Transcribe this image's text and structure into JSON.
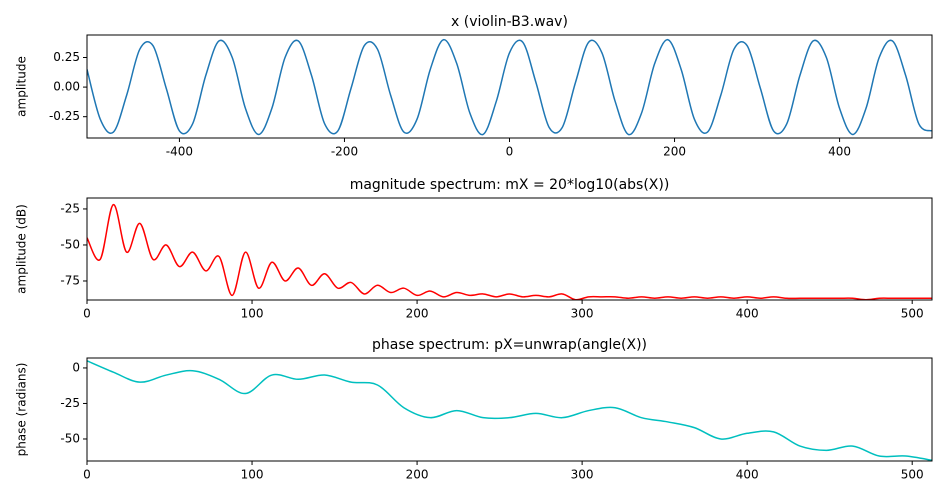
{
  "chart_data": [
    {
      "type": "line",
      "title": "x (violin-B3.wav)",
      "y_label": "amplitude",
      "x": [
        -512,
        -496,
        -480,
        -464,
        -448,
        -432,
        -416,
        -400,
        -384,
        -368,
        -352,
        -336,
        -320,
        -304,
        -288,
        -272,
        -256,
        -240,
        -224,
        -208,
        -192,
        -176,
        -160,
        -144,
        -128,
        -112,
        -96,
        -80,
        -64,
        -48,
        -32,
        -16,
        0,
        16,
        32,
        48,
        64,
        80,
        96,
        112,
        128,
        144,
        160,
        176,
        192,
        208,
        224,
        240,
        256,
        272,
        288,
        304,
        320,
        336,
        352,
        368,
        384,
        400,
        416,
        432,
        448,
        464,
        480,
        496,
        512
      ],
      "series": [
        {
          "color": "#1f77b4",
          "values": [
            0.15,
            -0.27,
            -0.38,
            -0.07,
            0.32,
            0.35,
            -0.01,
            -0.37,
            -0.31,
            0.1,
            0.39,
            0.25,
            -0.18,
            -0.4,
            -0.18,
            0.25,
            0.39,
            0.1,
            -0.31,
            -0.37,
            -0.01,
            0.35,
            0.32,
            -0.07,
            -0.38,
            -0.27,
            0.15,
            0.4,
            0.2,
            -0.22,
            -0.4,
            -0.12,
            0.29,
            0.38,
            0.04,
            -0.34,
            -0.34,
            0.04,
            0.38,
            0.29,
            -0.12,
            -0.4,
            -0.22,
            0.2,
            0.4,
            0.15,
            -0.27,
            -0.38,
            -0.07,
            0.32,
            0.35,
            -0.01,
            -0.37,
            -0.31,
            0.1,
            0.39,
            0.25,
            -0.18,
            -0.4,
            -0.18,
            0.25,
            0.39,
            0.1,
            -0.31,
            -0.37
          ]
        }
      ],
      "xlim": [
        -512,
        512
      ],
      "xticks": [
        -400,
        -200,
        0,
        200,
        400
      ],
      "ylim": [
        -0.43,
        0.44
      ],
      "yticks": [
        -0.25,
        {
          "value": 0,
          "label": "0.00"
        },
        0.25
      ]
    },
    {
      "type": "line",
      "title": "magnitude spectrum: mX = 20*log10(abs(X))",
      "y_label": "amplitude (dB)",
      "x": [
        0,
        8,
        16,
        24,
        32,
        40,
        48,
        56,
        64,
        72,
        80,
        88,
        96,
        104,
        112,
        120,
        128,
        136,
        144,
        152,
        160,
        168,
        176,
        184,
        192,
        200,
        208,
        216,
        224,
        232,
        240,
        248,
        256,
        264,
        272,
        280,
        288,
        296,
        304,
        312,
        320,
        328,
        336,
        344,
        352,
        360,
        368,
        376,
        384,
        392,
        400,
        408,
        416,
        424,
        432,
        440,
        448,
        456,
        464,
        472,
        480,
        488,
        496,
        504,
        512
      ],
      "series": [
        {
          "color": "#ff0000",
          "values": [
            -45,
            -60,
            -22,
            -55,
            -35,
            -60,
            -50,
            -65,
            -55,
            -68,
            -58,
            -85,
            -55,
            -80,
            -62,
            -75,
            -66,
            -78,
            -70,
            -80,
            -76,
            -84,
            -78,
            -83,
            -80,
            -85,
            -82,
            -86,
            -83,
            -85,
            -84,
            -86,
            -84,
            -86,
            -85,
            -86,
            -84,
            -88,
            -86,
            -86,
            -86,
            -87,
            -86,
            -87,
            -86,
            -87,
            -86,
            -87,
            -86,
            -87,
            -86,
            -87,
            -86,
            -87,
            -87,
            -87,
            -87,
            -87,
            -87,
            -88,
            -87,
            -87,
            -87,
            -87,
            -87
          ]
        }
      ],
      "xlim": [
        0,
        512
      ],
      "xticks": [
        0,
        100,
        200,
        300,
        400,
        500
      ],
      "ylim": [
        -88.2,
        -17.4
      ],
      "yticks": [
        -75,
        -50,
        -25
      ]
    },
    {
      "type": "line",
      "title": "phase spectrum: pX=unwrap(angle(X))",
      "y_label": "phase (radians)",
      "x": [
        0,
        16,
        32,
        48,
        64,
        80,
        96,
        112,
        128,
        144,
        160,
        176,
        192,
        208,
        224,
        240,
        256,
        272,
        288,
        304,
        320,
        336,
        352,
        368,
        384,
        400,
        416,
        432,
        448,
        464,
        480,
        496,
        512
      ],
      "series": [
        {
          "color": "#00bfbf",
          "values": [
            5,
            -3,
            -10,
            -5,
            -2,
            -8,
            -18,
            -5,
            -8,
            -5,
            -10,
            -12,
            -28,
            -35,
            -30,
            -35,
            -35,
            -32,
            -35,
            -30,
            -28,
            -35,
            -38,
            -42,
            -50,
            -46,
            -45,
            -55,
            -58,
            -55,
            -62,
            -62,
            -65
          ]
        }
      ],
      "xlim": [
        0,
        512
      ],
      "xticks": [
        0,
        100,
        200,
        300,
        400,
        500
      ],
      "ylim": [
        -65.5,
        7
      ],
      "yticks": [
        -50,
        -25,
        0
      ]
    }
  ]
}
